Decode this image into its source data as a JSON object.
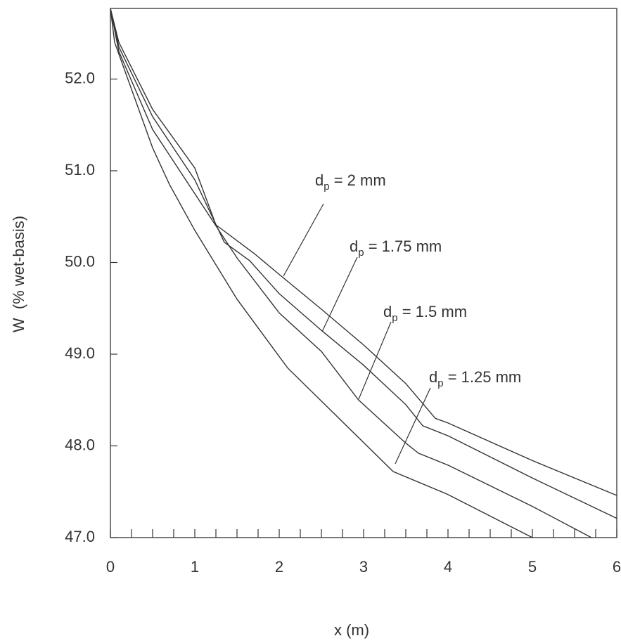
{
  "chart_data": {
    "type": "line",
    "xlabel": "x (m)",
    "ylabel": "W  (% wet-basis)",
    "xlim": [
      0,
      6
    ],
    "ylim": [
      47,
      52.77
    ],
    "xticks": [
      0,
      1,
      2,
      3,
      4,
      5,
      6
    ],
    "xminorticks": [
      0.25,
      0.5,
      0.75,
      1.25,
      1.5,
      1.75,
      2.25,
      2.5,
      2.75,
      3.25,
      3.5,
      3.75,
      4.25,
      4.5,
      4.75,
      5.25,
      5.5,
      5.75
    ],
    "yticks": [
      {
        "value": 47,
        "label": "47.0"
      },
      {
        "value": 48,
        "label": "48.0"
      },
      {
        "value": 49,
        "label": "49.0"
      },
      {
        "value": 50,
        "label": "50.0"
      },
      {
        "value": 51,
        "label": "51.0"
      },
      {
        "value": 52,
        "label": "52.0"
      }
    ],
    "grid": false,
    "color": "#333333",
    "series": [
      {
        "x": [
          0,
          0.1,
          0.5,
          1.0,
          1.25,
          1.7,
          2.0,
          2.5,
          3.0,
          3.5,
          3.85,
          4.0,
          5.0,
          6.0
        ],
        "values": [
          52.77,
          52.4,
          51.67,
          51.03,
          50.41,
          50.1,
          49.87,
          49.49,
          49.1,
          48.68,
          48.3,
          48.25,
          47.84,
          47.46
        ]
      },
      {
        "x": [
          0,
          0.1,
          0.5,
          1.0,
          1.35,
          1.65,
          2.0,
          2.5,
          3.0,
          3.5,
          3.7,
          4.0,
          5.0,
          6.0
        ],
        "values": [
          52.77,
          52.35,
          51.59,
          50.9,
          50.22,
          50.02,
          49.66,
          49.26,
          48.88,
          48.45,
          48.22,
          48.11,
          47.65,
          47.21
        ]
      },
      {
        "x": [
          0,
          0.1,
          0.5,
          1.0,
          1.5,
          2.0,
          2.5,
          2.94,
          3.5,
          3.65,
          4.0,
          5.0,
          5.7
        ],
        "values": [
          52.77,
          52.3,
          51.45,
          50.75,
          50.05,
          49.45,
          49.03,
          48.5,
          48.03,
          47.92,
          47.79,
          47.34,
          47.0
        ]
      },
      {
        "x": [
          0,
          0.05,
          0.5,
          0.7,
          1.0,
          1.5,
          2.1,
          3.35,
          4.0,
          5.0
        ],
        "values": [
          52.77,
          52.4,
          51.25,
          50.85,
          50.35,
          49.6,
          48.85,
          47.72,
          47.47,
          47.0
        ]
      }
    ],
    "annotations": [
      {
        "text": "d",
        "sub": "p",
        "suffix": " = 2 mm"
      },
      {
        "text": "d",
        "sub": "p",
        "suffix": " = 1.75 mm"
      },
      {
        "text": "d",
        "sub": "p",
        "suffix": " = 1.5 mm"
      },
      {
        "text": "d",
        "sub": "p",
        "suffix": " = 1.25 mm"
      }
    ]
  }
}
